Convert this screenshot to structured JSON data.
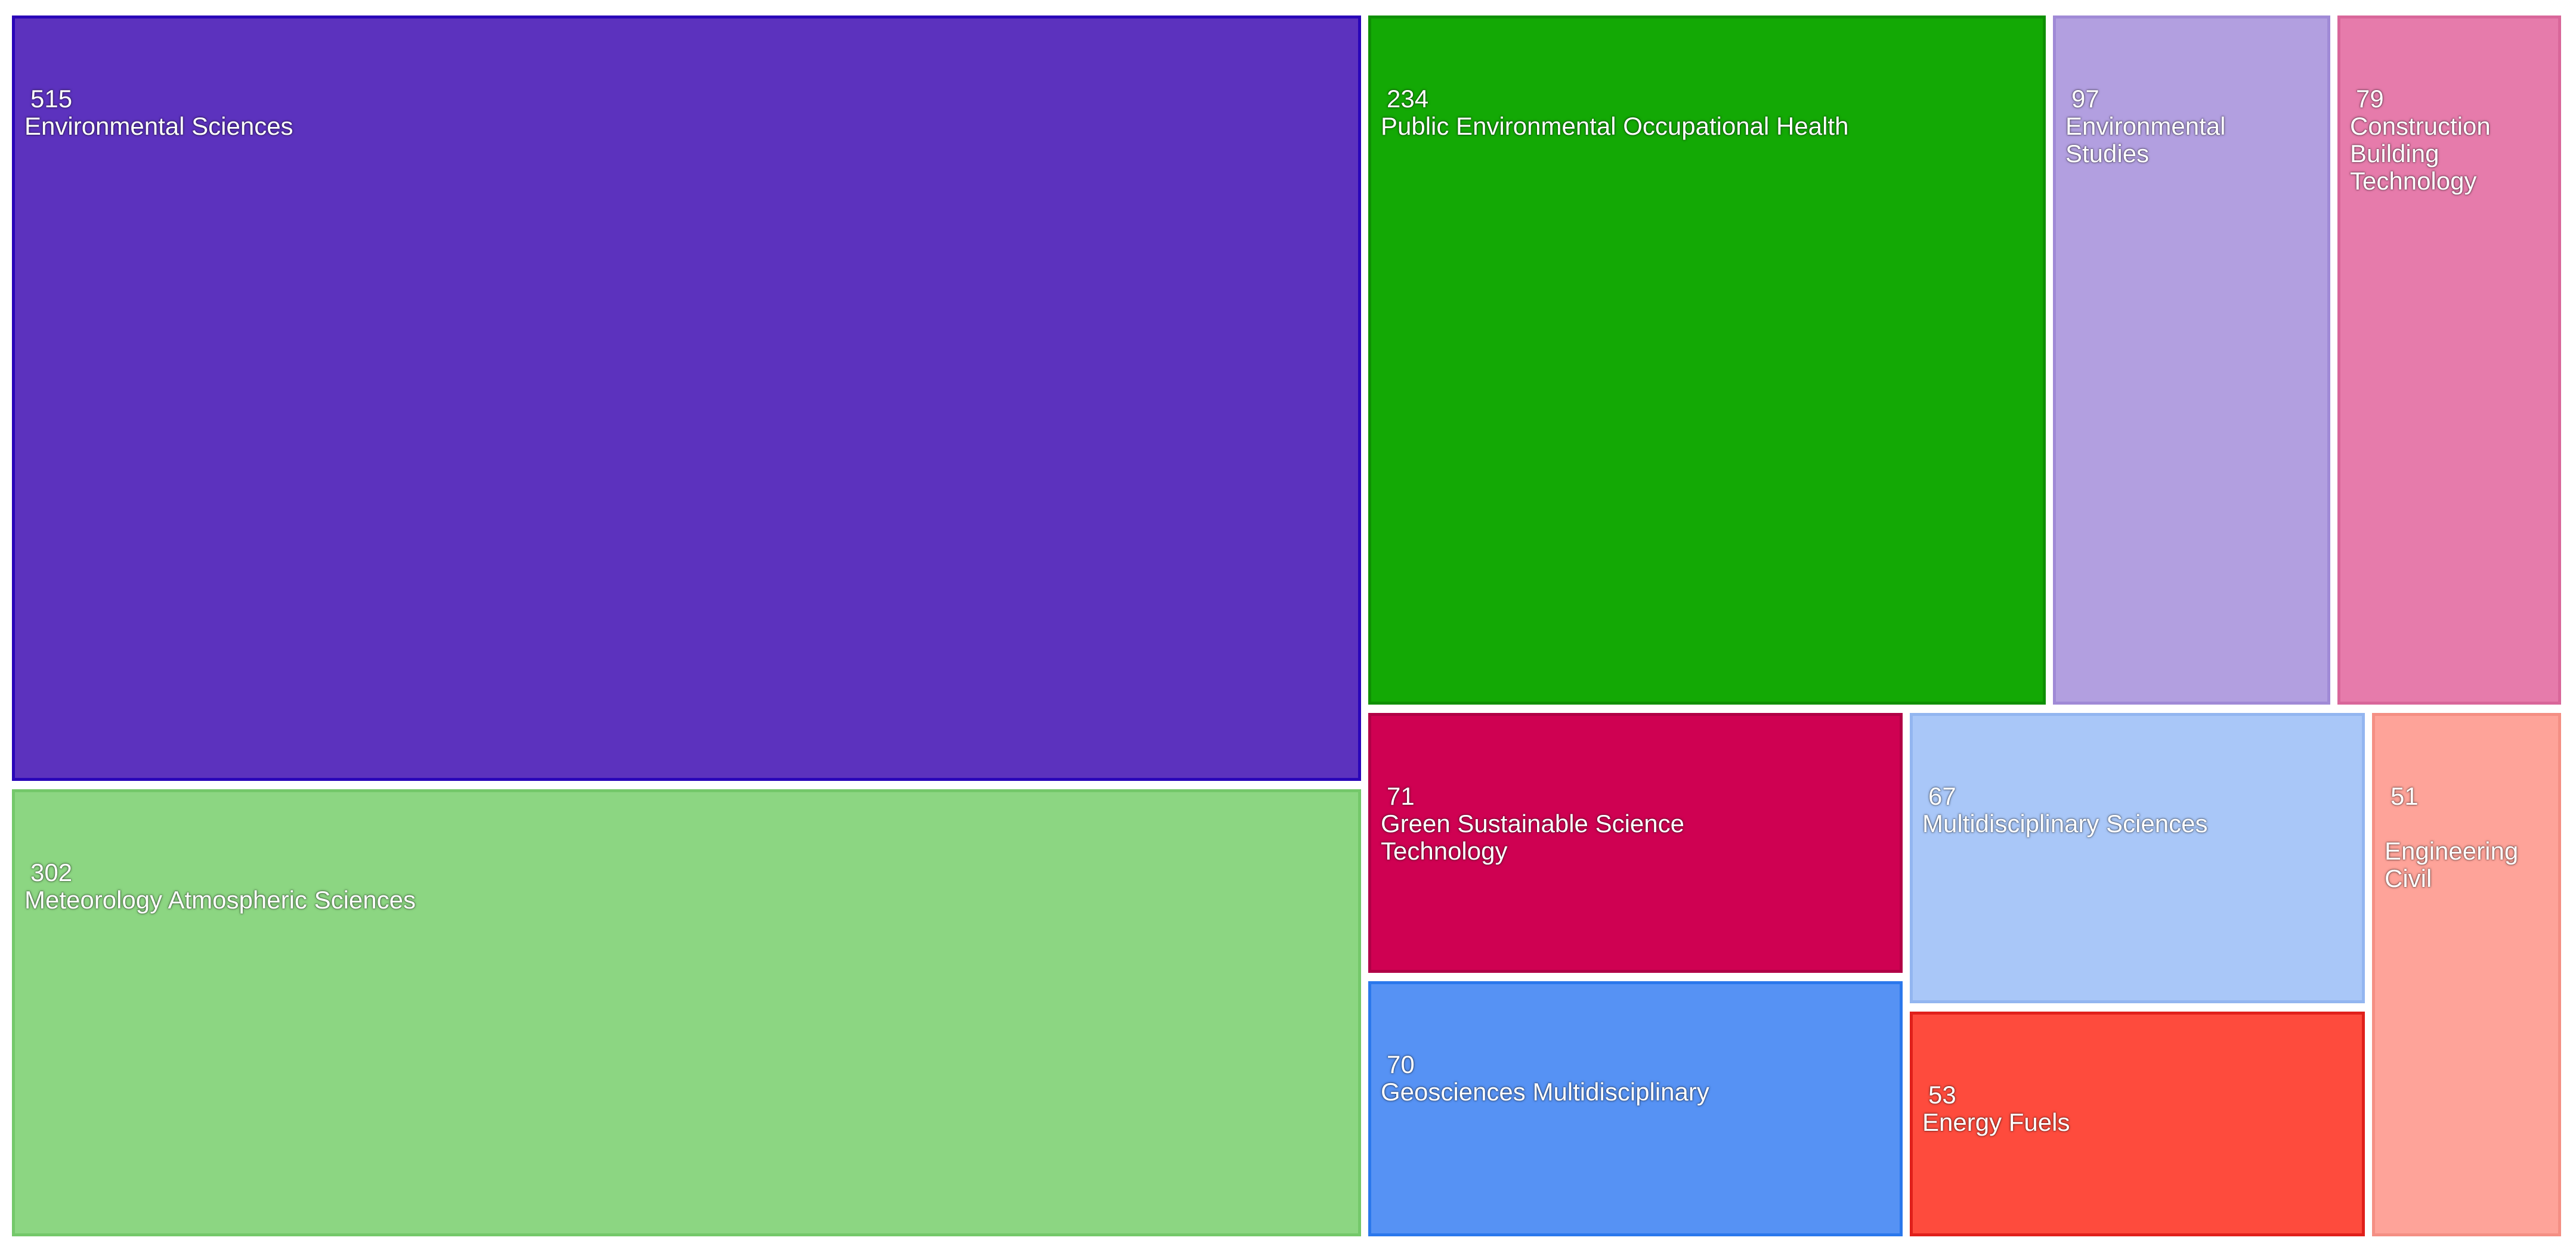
{
  "chart_data": {
    "type": "treemap",
    "items": [
      {
        "label": "Environmental Sciences",
        "value": 515,
        "color": "#5c32be",
        "border": "#2a06b8"
      },
      {
        "label": "Meteorology Atmospheric Sciences",
        "value": 302,
        "color": "#8cd682",
        "border": "#74c86a"
      },
      {
        "label": "Public Environmental Occupational Health",
        "value": 234,
        "color": "#13a905",
        "border": "#0f9004"
      },
      {
        "label": "    Environmental\nStudies",
        "value": 97,
        "color": "#b29fe0",
        "border": "#a08ad6"
      },
      {
        "label": "    Construction\n  Building\nTechnology",
        "value": 79,
        "color": "#e67bab",
        "border": "#d9679a"
      },
      {
        "label": "    Green Sustainable Science\nTechnology",
        "value": 71,
        "color": "#cf0152",
        "border": "#b10046"
      },
      {
        "label": "Geosciences Multidisciplinary",
        "value": 70,
        "color": "#5692f4",
        "border": "#2b78ec"
      },
      {
        "label": "Multidisciplinary Sciences",
        "value": 67,
        "color": "#a9c7f8",
        "border": "#93b6f0"
      },
      {
        "label": "Energy Fuels",
        "value": 53,
        "color": "#fe4b3d",
        "border": "#e0201b"
      },
      {
        "label": "\n  Engineering\nCivil",
        "value": 51,
        "color": "#fea399",
        "border": "#f48f84"
      }
    ]
  }
}
